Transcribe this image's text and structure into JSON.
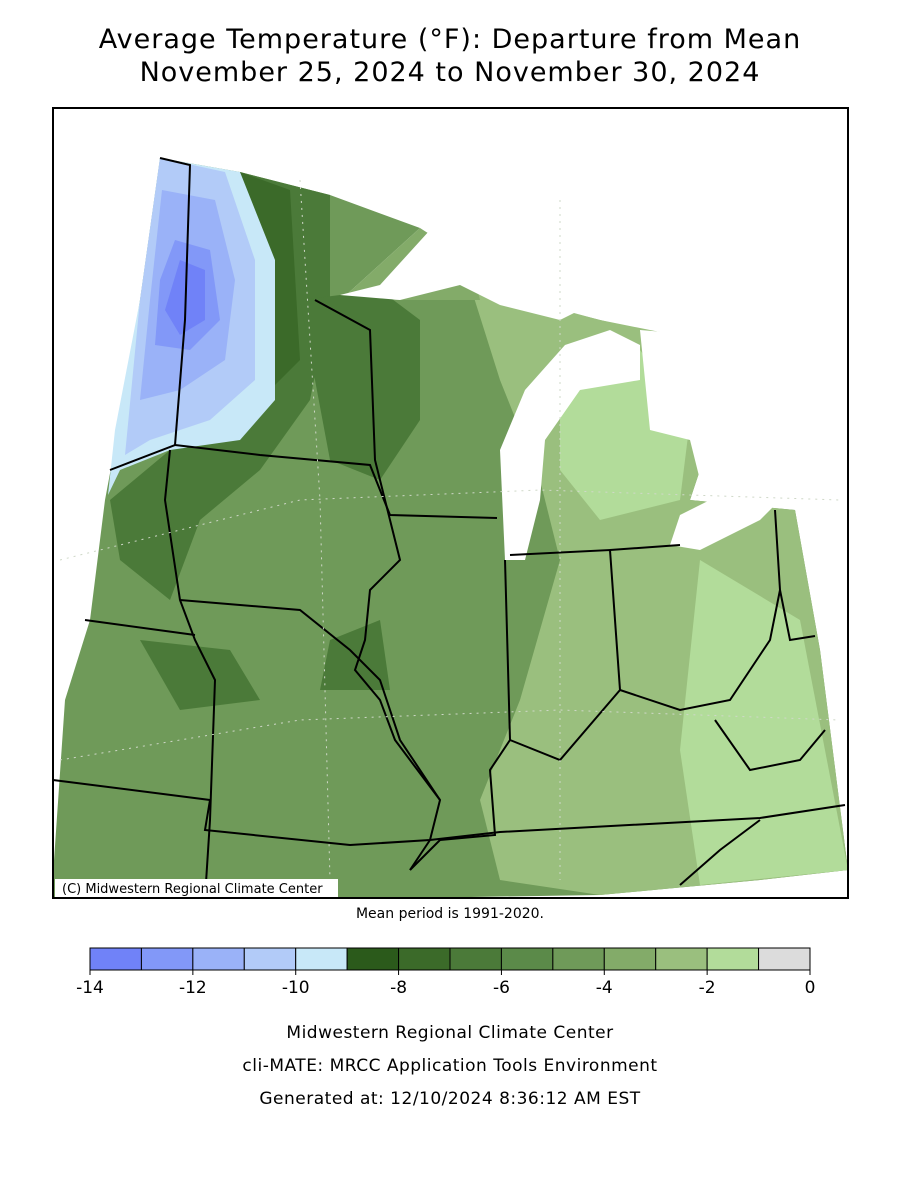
{
  "title": "Average Temperature (°F): Departure from Mean",
  "subtitle": "November 25, 2024 to November 30, 2024",
  "map": {
    "copyright": "(C) Midwestern Regional Climate Center",
    "note": "Mean period is 1991-2020."
  },
  "legend": {
    "type": "colorbar",
    "bins": [
      -14,
      -13,
      -12,
      -11,
      -10,
      -9,
      -8,
      -7,
      -6,
      -5,
      -4,
      -3,
      -2,
      -1,
      0
    ],
    "colors": [
      "#7082f8",
      "#8298f8",
      "#9ab2f8",
      "#b2cbf8",
      "#c8e8f8",
      "#2b5a1b",
      "#3b6a29",
      "#4b7a39",
      "#5b8a49",
      "#6f9a59",
      "#83ab69",
      "#9abf7e",
      "#b2dc9a",
      "#dcdcdc"
    ],
    "ticks": [
      -14,
      -12,
      -10,
      -8,
      -6,
      -4,
      -2,
      0
    ]
  },
  "footer": [
    "Midwestern Regional Climate Center",
    "cli-MATE: MRCC Application Tools Environment",
    "Generated at: 12/10/2024 8:36:12 AM EST"
  ]
}
